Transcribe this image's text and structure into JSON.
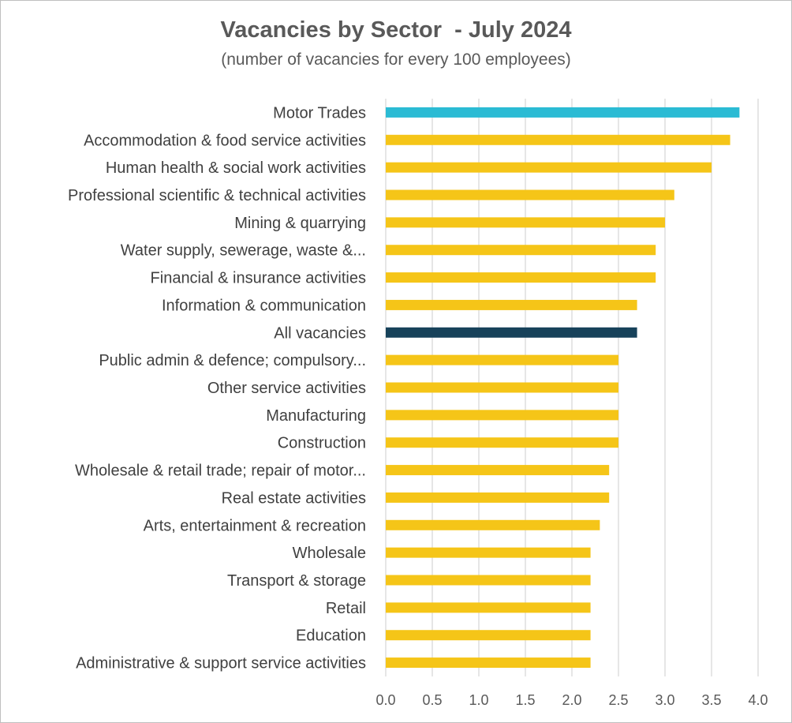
{
  "chart_data": {
    "type": "bar",
    "orientation": "horizontal",
    "title": "Vacancies by Sector  - July 2024",
    "subtitle": "(number of vacancies for every 100 employees)",
    "xlabel": "",
    "ylabel": "",
    "xlim": [
      0,
      4.0
    ],
    "ticks": [
      "0.0",
      "0.5",
      "1.0",
      "1.5",
      "2.0",
      "2.5",
      "3.0",
      "3.5",
      "4.0"
    ],
    "grid": true,
    "categories": [
      "Motor Trades",
      "Accommodation & food service activities",
      "Human health & social work activities",
      "Professional scientific & technical activities",
      "Mining & quarrying",
      "Water supply, sewerage, waste &...",
      "Financial & insurance activities",
      "Information & communication",
      "All vacancies",
      "Public admin & defence; compulsory...",
      "Other service activities",
      "Manufacturing",
      "Construction",
      "Wholesale & retail trade; repair of motor...",
      "Real estate activities",
      "Arts, entertainment & recreation",
      "Wholesale",
      "Transport & storage",
      "Retail",
      "Education",
      "Administrative & support service activities"
    ],
    "values": [
      3.8,
      3.7,
      3.5,
      3.1,
      3.0,
      2.9,
      2.9,
      2.7,
      2.7,
      2.5,
      2.5,
      2.5,
      2.5,
      2.4,
      2.4,
      2.3,
      2.2,
      2.2,
      2.2,
      2.2,
      2.2
    ],
    "colors": {
      "default": "#f5c518",
      "highlight": "#2bbbd4",
      "total": "#17425a",
      "grid": "#d9d9d9"
    },
    "bar_colors": [
      "highlight",
      "default",
      "default",
      "default",
      "default",
      "default",
      "default",
      "default",
      "total",
      "default",
      "default",
      "default",
      "default",
      "default",
      "default",
      "default",
      "default",
      "default",
      "default",
      "default",
      "default"
    ]
  }
}
